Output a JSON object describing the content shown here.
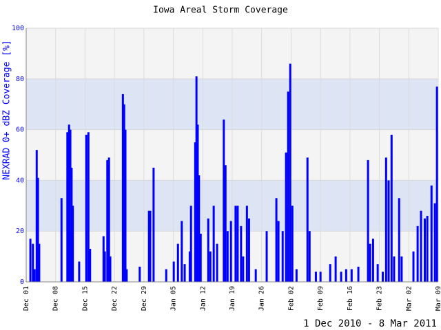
{
  "chart_data": {
    "type": "bar",
    "title": "Iowa Areal Storm Coverage",
    "ylabel": "NEXRAD 0+ dBZ Coverage [%]",
    "footer": "1 Dec 2010 - 8 Mar 2011",
    "color": "#0000ff",
    "band_colors": [
      "#f4f4f4",
      "#dde5f5"
    ],
    "grid": true,
    "xlim": [
      0,
      98
    ],
    "ylim": [
      0,
      100
    ],
    "yticks": [
      0,
      20,
      40,
      60,
      80,
      100
    ],
    "xticks": [
      {
        "value": 0,
        "label": "Dec 01"
      },
      {
        "value": 7,
        "label": "Dec 08"
      },
      {
        "value": 14,
        "label": "Dec 15"
      },
      {
        "value": 21,
        "label": "Dec 22"
      },
      {
        "value": 28,
        "label": "Dec 29"
      },
      {
        "value": 35,
        "label": "Jan 05"
      },
      {
        "value": 42,
        "label": "Jan 12"
      },
      {
        "value": 49,
        "label": "Jan 19"
      },
      {
        "value": 56,
        "label": "Jan 26"
      },
      {
        "value": 63,
        "label": "Feb 02"
      },
      {
        "value": 70,
        "label": "Feb 09"
      },
      {
        "value": 77,
        "label": "Feb 16"
      },
      {
        "value": 84,
        "label": "Feb 23"
      },
      {
        "value": 91,
        "label": "Mar 02"
      },
      {
        "value": 98,
        "label": "Mar 09"
      }
    ],
    "x": [
      1.0,
      1.6,
      2.0,
      2.5,
      2.8,
      3.1,
      8.4,
      9.8,
      10.2,
      10.5,
      10.8,
      11.1,
      12.6,
      14.3,
      14.8,
      15.2,
      18.4,
      18.7,
      19.3,
      19.7,
      20.0,
      23.0,
      23.3,
      23.6,
      23.9,
      27.0,
      29.2,
      29.5,
      30.3,
      33.3,
      35.1,
      36.1,
      37.0,
      37.7,
      38.9,
      39.2,
      40.2,
      40.5,
      40.8,
      41.1,
      41.5,
      43.3,
      43.8,
      44.6,
      45.4,
      47.0,
      47.4,
      47.9,
      48.7,
      49.8,
      50.3,
      51.1,
      51.6,
      52.5,
      53.0,
      54.6,
      57.2,
      59.5,
      60.0,
      61.0,
      61.8,
      62.3,
      62.8,
      63.3,
      64.3,
      66.9,
      67.4,
      68.9,
      70.0,
      72.3,
      73.6,
      74.9,
      76.1,
      77.4,
      79.0,
      81.3,
      81.8,
      82.5,
      83.6,
      84.8,
      85.6,
      86.2,
      86.9,
      87.5,
      88.7,
      89.3,
      92.1,
      93.1,
      93.9,
      94.8,
      95.4,
      96.4,
      97.2,
      97.7
    ],
    "values": [
      17,
      15,
      5,
      52,
      41,
      15,
      33,
      59,
      62,
      60,
      45,
      30,
      8,
      58,
      59,
      13,
      18,
      12,
      48,
      49,
      10,
      74,
      70,
      60,
      5,
      6,
      28,
      28,
      45,
      5,
      8,
      15,
      24,
      7,
      12,
      30,
      55,
      81,
      62,
      42,
      19,
      25,
      12,
      30,
      15,
      64,
      46,
      20,
      24,
      30,
      30,
      22,
      10,
      30,
      25,
      5,
      20,
      33,
      24,
      20,
      51,
      75,
      86,
      30,
      5,
      49,
      20,
      4,
      4,
      7,
      10,
      4,
      5,
      5,
      6,
      48,
      15,
      17,
      7,
      4,
      49,
      40,
      58,
      10,
      33,
      10,
      12,
      22,
      28,
      25,
      26,
      38,
      31,
      77
    ]
  }
}
